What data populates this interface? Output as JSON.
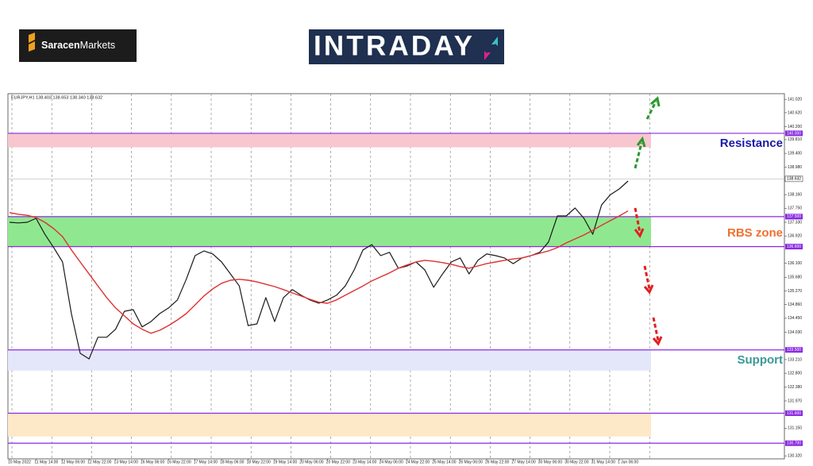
{
  "header": {
    "brand_bold": "Saracen",
    "brand_rest": "Markets",
    "badge": "INTRADAY"
  },
  "chart_data": {
    "type": "line",
    "info": "EURJPY,H1  138.403 138.653 138.340 138.632",
    "categories": [
      "10 May 2022",
      null,
      null,
      "11 May 14:00",
      null,
      null,
      "12 May 06:00",
      null,
      null,
      "12 May 22:00",
      null,
      null,
      "13 May 14:00",
      null,
      null,
      "16 May 06:00",
      null,
      null,
      "16 May 22:00",
      null,
      null,
      "17 May 14:00",
      null,
      null,
      "18 May 06:00",
      null,
      null,
      "18 May 22:00",
      null,
      null,
      "19 May 14:00",
      null,
      null,
      "20 May 06:00",
      null,
      null,
      "20 May 22:00",
      null,
      null,
      "23 May 14:00",
      null,
      null,
      "24 May 06:00",
      null,
      null,
      "24 May 22:00",
      null,
      null,
      "25 May 14:00",
      null,
      null,
      "26 May 06:00",
      null,
      null,
      "26 May 22:00",
      null,
      null,
      "27 May 14:00",
      null,
      null,
      "30 May 06:00",
      null,
      null,
      "30 May 22:00",
      null,
      null,
      "31 May 14:00",
      null,
      null,
      "1 Jun 06:00",
      null,
      null
    ],
    "series": [
      {
        "color": "#1a1a1a",
        "values": [
          137.33,
          137.31,
          137.33,
          137.45,
          136.97,
          136.57,
          136.14,
          134.59,
          133.4,
          133.23,
          133.88,
          133.88,
          134.12,
          134.66,
          134.71,
          134.19,
          134.35,
          134.59,
          134.76,
          135.0,
          135.62,
          136.33,
          136.47,
          136.38,
          136.14,
          135.78,
          135.42,
          134.23,
          134.28,
          135.07,
          134.35,
          135.07,
          135.31,
          135.14,
          135.0,
          134.9,
          135.0,
          135.14,
          135.42,
          135.9,
          136.5,
          136.66,
          136.33,
          136.43,
          135.95,
          136.02,
          136.14,
          135.9,
          135.38,
          135.78,
          136.14,
          136.26,
          135.78,
          136.19,
          136.38,
          136.33,
          136.26,
          136.09,
          136.26,
          136.33,
          136.43,
          136.74,
          137.52,
          137.52,
          137.76,
          137.45,
          136.97,
          137.85,
          138.16,
          138.33,
          138.57,
          null
        ]
      },
      {
        "color": "#e03030",
        "values": [
          137.62,
          137.57,
          137.54,
          137.47,
          137.33,
          137.14,
          136.9,
          136.5,
          136.14,
          135.78,
          135.42,
          135.07,
          134.76,
          134.52,
          134.28,
          134.12,
          134.0,
          134.09,
          134.23,
          134.4,
          134.59,
          134.85,
          135.12,
          135.33,
          135.5,
          135.59,
          135.62,
          135.59,
          135.54,
          135.47,
          135.4,
          135.31,
          135.21,
          135.12,
          135.02,
          134.93,
          134.9,
          135.0,
          135.14,
          135.28,
          135.42,
          135.57,
          135.69,
          135.81,
          135.95,
          136.05,
          136.14,
          136.19,
          136.16,
          136.12,
          136.07,
          136.0,
          135.95,
          136.02,
          136.09,
          136.14,
          136.19,
          136.23,
          136.26,
          136.33,
          136.4,
          136.47,
          136.57,
          136.71,
          136.83,
          136.95,
          137.09,
          137.24,
          137.38,
          137.52,
          137.67,
          null
        ]
      }
    ],
    "ylim": [
      130.23,
      141.19
    ],
    "yticks": [
      {
        "value": 141.02,
        "label": "141.020"
      },
      {
        "value": 140.62,
        "label": "140.620"
      },
      {
        "value": 140.2,
        "label": "140.200"
      },
      {
        "value": 139.81,
        "label": "139.810"
      },
      {
        "value": 139.4,
        "label": "139.400"
      },
      {
        "value": 138.98,
        "label": "138.980"
      },
      {
        "value": 138.16,
        "label": "138.160"
      },
      {
        "value": 137.75,
        "label": "137.750"
      },
      {
        "value": 137.33,
        "label": "137.330"
      },
      {
        "value": 136.92,
        "label": "136.920"
      },
      {
        "value": 136.1,
        "label": "136.100"
      },
      {
        "value": 135.68,
        "label": "135.680"
      },
      {
        "value": 135.27,
        "label": "135.270"
      },
      {
        "value": 134.86,
        "label": "134.860"
      },
      {
        "value": 134.45,
        "label": "134.450"
      },
      {
        "value": 134.03,
        "label": "134.030"
      },
      {
        "value": 133.21,
        "label": "133.210"
      },
      {
        "value": 132.8,
        "label": "132.800"
      },
      {
        "value": 132.38,
        "label": "132.380"
      },
      {
        "value": 131.97,
        "label": "131.970"
      },
      {
        "value": 131.15,
        "label": "131.150"
      },
      {
        "value": 130.32,
        "label": "130.320"
      }
    ],
    "levels": [
      {
        "value": 140,
        "label": "140.000"
      },
      {
        "value": 137.5,
        "label": "137.500"
      },
      {
        "value": 136.6,
        "label": "136.600"
      },
      {
        "value": 133.5,
        "label": "133.500"
      },
      {
        "value": 131.6,
        "label": "131.600"
      },
      {
        "value": 130.7,
        "label": "130.700"
      }
    ],
    "level_color": "#8a2be2",
    "zones": [
      {
        "from": 140,
        "to": 139.58,
        "color": "#f7c6cf"
      },
      {
        "from": 137.5,
        "to": 136.6,
        "color": "#8fe88f"
      },
      {
        "from": 133.5,
        "to": 132.88,
        "color": "#e4e6fa"
      },
      {
        "from": 131.6,
        "to": 130.9,
        "color": "#fde8c8"
      }
    ],
    "last_price": {
      "value": 138.632,
      "label": "138.632"
    },
    "annotations": [
      {
        "text": "Resistance",
        "color": "#1a1aa8"
      },
      {
        "text": "RBS zone",
        "color": "#f07030"
      },
      {
        "text": "Support",
        "color": "#3a9898"
      }
    ]
  }
}
